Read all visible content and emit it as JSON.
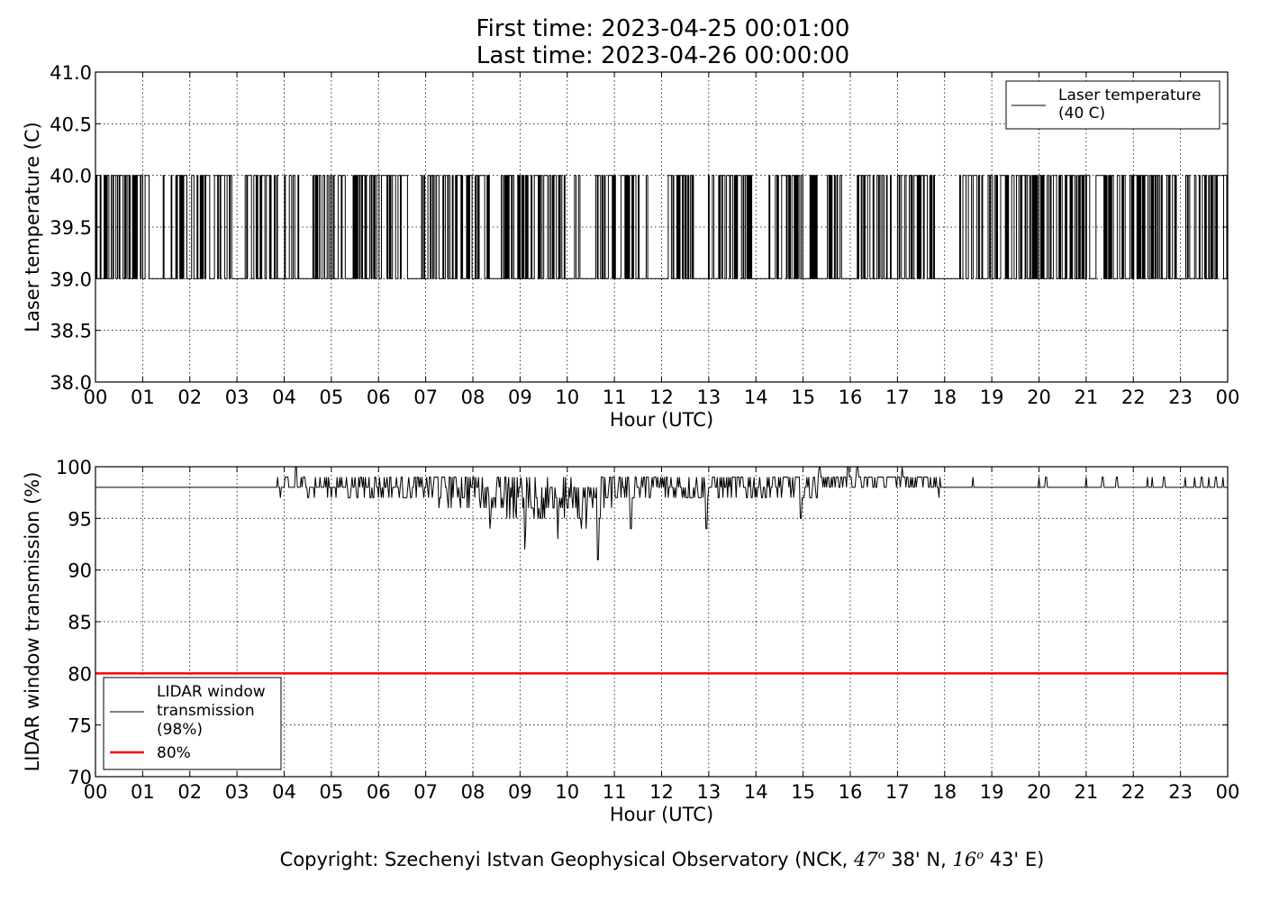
{
  "title_first": "First time: 2023-04-25 00:01:00",
  "title_last": "Last time: 2023-04-26 00:00:00",
  "copyright": {
    "text": "Copyright: Szechenyi Istvan Geophysical Observatory (NCK,",
    "lat_deg": "47",
    "lat_sup": "o",
    "lat_min": "38' N,",
    "lon_deg": "16",
    "lon_sup": "o",
    "lon_min": "43' E)"
  },
  "chart_data": [
    {
      "type": "line",
      "xlabel": "Hour (UTC)",
      "ylabel": "Laser temperature (C)",
      "xlim": [
        0,
        24
      ],
      "ylim": [
        38.0,
        41.0
      ],
      "grid": true,
      "legend_position": "top-right",
      "x_tick_labels": [
        "00",
        "01",
        "02",
        "03",
        "04",
        "05",
        "06",
        "07",
        "08",
        "09",
        "10",
        "11",
        "12",
        "13",
        "14",
        "15",
        "16",
        "17",
        "18",
        "19",
        "20",
        "21",
        "22",
        "23",
        "00"
      ],
      "y_tick_labels": [
        "38.0",
        "38.5",
        "39.0",
        "39.5",
        "40.0",
        "40.5",
        "41.0"
      ],
      "y_tick_values": [
        38.0,
        38.5,
        39.0,
        39.5,
        40.0,
        40.5,
        41.0
      ],
      "series": [
        {
          "name": "Laser temperature\n(40 C)",
          "color": "#000000",
          "levels": [
            39.0,
            40.0
          ],
          "x_step_hours": 0.0167,
          "active_intervals": [
            [
              0.0,
              1.0
            ],
            [
              1.05,
              1.15
            ],
            [
              1.6,
              2.9
            ],
            [
              3.1,
              3.9
            ],
            [
              4.0,
              4.3
            ],
            [
              4.6,
              6.6
            ],
            [
              6.9,
              7.5
            ],
            [
              7.6,
              8.3
            ],
            [
              8.6,
              9.9
            ],
            [
              10.1,
              10.3
            ],
            [
              10.6,
              11.7
            ],
            [
              12.1,
              12.7
            ],
            [
              13.2,
              13.9
            ],
            [
              14.4,
              15.3
            ],
            [
              15.5,
              15.8
            ],
            [
              16.1,
              16.9
            ],
            [
              17.0,
              17.8
            ],
            [
              18.3,
              18.8
            ],
            [
              18.9,
              21.1
            ],
            [
              21.2,
              22.6
            ],
            [
              22.7,
              22.9
            ],
            [
              23.1,
              24.0
            ]
          ],
          "summary": {
            "low": 39.0,
            "high": 40.0
          }
        }
      ]
    },
    {
      "type": "line",
      "xlabel": "Hour (UTC)",
      "ylabel": "LIDAR window transmission (%)",
      "xlim": [
        0,
        24
      ],
      "ylim": [
        70,
        100
      ],
      "grid": true,
      "legend_position": "bottom-left",
      "x_tick_labels": [
        "00",
        "01",
        "02",
        "03",
        "04",
        "05",
        "06",
        "07",
        "08",
        "09",
        "10",
        "11",
        "12",
        "13",
        "14",
        "15",
        "16",
        "17",
        "18",
        "19",
        "20",
        "21",
        "22",
        "23",
        "00"
      ],
      "y_tick_labels": [
        "70",
        "75",
        "80",
        "85",
        "90",
        "95",
        "100"
      ],
      "y_tick_values": [
        70,
        75,
        80,
        85,
        90,
        95,
        100
      ],
      "series": [
        {
          "name": "LIDAR window\ntransmission\n(98%)",
          "color": "#000000",
          "baseline": 98,
          "noisy_interval": [
            3.85,
            17.9
          ],
          "dips": [
            {
              "x": 9.1,
              "y": 92
            },
            {
              "x": 9.8,
              "y": 93
            },
            {
              "x": 10.65,
              "y": 91
            },
            {
              "x": 11.35,
              "y": 94
            },
            {
              "x": 12.95,
              "y": 94
            },
            {
              "x": 14.95,
              "y": 95
            }
          ],
          "spikes_above": [
            {
              "x": 4.25,
              "y": 100
            },
            {
              "x": 15.35,
              "y": 100
            },
            {
              "x": 15.95,
              "y": 100
            },
            {
              "x": 16.15,
              "y": 100
            },
            {
              "x": 17.1,
              "y": 100
            }
          ],
          "sparse_blips": [
            18.6,
            20.0,
            20.15,
            21.0,
            21.35,
            21.65,
            22.3,
            22.4,
            22.65,
            23.1,
            23.3,
            23.45,
            23.6,
            23.75,
            23.9
          ]
        },
        {
          "name": "80%",
          "color": "#ff0000",
          "y": 80
        }
      ]
    }
  ]
}
